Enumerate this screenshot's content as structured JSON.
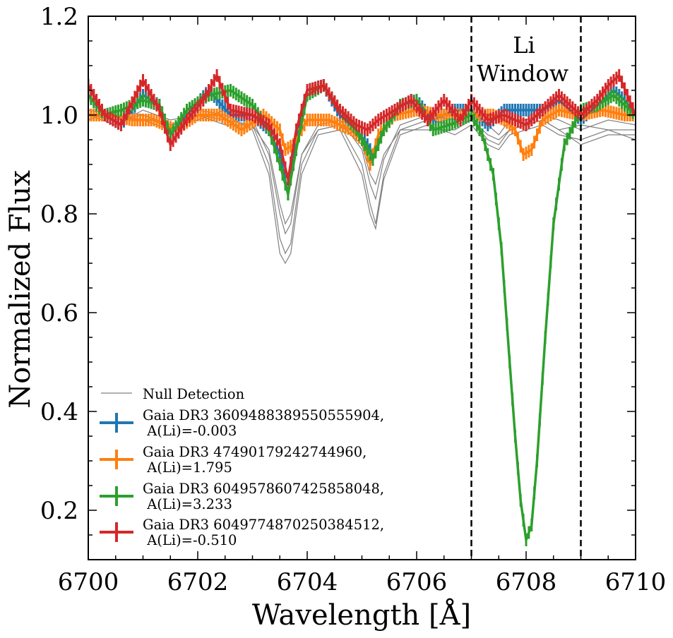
{
  "chart_data": {
    "type": "line",
    "title": "",
    "xlabel": "Wavelength [Å]",
    "ylabel": "Normalized Flux",
    "xlim": [
      6700,
      6710
    ],
    "ylim": [
      0.1,
      1.2
    ],
    "xticks": [
      6700,
      6702,
      6704,
      6706,
      6708,
      6710
    ],
    "xtick_labels": [
      "6700",
      "6702",
      "6704",
      "6706",
      "6708",
      "6710"
    ],
    "yticks": [
      0.2,
      0.4,
      0.6,
      0.8,
      1.0,
      1.2
    ],
    "ytick_labels": [
      "0.2",
      "0.4",
      "0.6",
      "0.8",
      "1.0",
      "1.2"
    ],
    "vlines": [
      6707.0,
      6709.0
    ],
    "annotation": {
      "line1": "Li",
      "line2": "Window",
      "x": 6707.95,
      "y": 1.12
    },
    "null_detection": {
      "name": "Null Detection",
      "color": "#808080",
      "lines": [
        {
          "x": [
            6700,
            6700.5,
            6701,
            6701.5,
            6702,
            6702.5,
            6703,
            6703.3,
            6703.5,
            6703.6,
            6703.7,
            6703.9,
            6704.2,
            6704.6,
            6705.0,
            6705.15,
            6705.25,
            6705.4,
            6705.7,
            6706.2,
            6706.7,
            6707,
            6707.3,
            6707.5,
            6707.7,
            6708,
            6708.3,
            6708.6,
            6709,
            6709.5,
            6710
          ],
          "y": [
            1.0,
            0.99,
            1.0,
            0.98,
            1.0,
            0.99,
            0.98,
            0.9,
            0.75,
            0.72,
            0.74,
            0.9,
            0.97,
            0.98,
            0.9,
            0.82,
            0.78,
            0.88,
            0.97,
            0.99,
            0.98,
            0.99,
            0.96,
            0.95,
            0.97,
            0.98,
            0.99,
            0.97,
            0.98,
            0.97,
            0.97
          ]
        },
        {
          "x": [
            6700,
            6700.5,
            6701,
            6701.5,
            6702,
            6702.5,
            6703,
            6703.3,
            6703.5,
            6703.6,
            6703.7,
            6703.9,
            6704.2,
            6704.6,
            6705.0,
            6705.15,
            6705.25,
            6705.4,
            6705.7,
            6706.2,
            6706.7,
            6707,
            6707.3,
            6707.5,
            6707.7,
            6708,
            6708.3,
            6708.6,
            6709,
            6709.5,
            6710
          ],
          "y": [
            1.01,
            1.0,
            0.99,
            0.97,
            1.01,
            1.0,
            0.97,
            0.88,
            0.72,
            0.7,
            0.72,
            0.88,
            0.96,
            0.97,
            0.88,
            0.8,
            0.77,
            0.87,
            0.96,
            0.98,
            0.96,
            0.98,
            0.94,
            0.93,
            0.96,
            0.97,
            0.98,
            0.96,
            0.95,
            0.97,
            0.95
          ]
        },
        {
          "x": [
            6700,
            6700.5,
            6701,
            6701.5,
            6702,
            6702.5,
            6703,
            6703.3,
            6703.5,
            6703.6,
            6703.7,
            6703.9,
            6704.2,
            6704.6,
            6705.0,
            6705.15,
            6705.25,
            6705.4,
            6705.7,
            6706.2,
            6706.7,
            6707,
            6707.3,
            6707.5,
            6707.7,
            6708,
            6708.3,
            6708.6,
            6709,
            6709.5,
            6710
          ],
          "y": [
            0.99,
            1.01,
            1.0,
            0.98,
            0.99,
            1.01,
            0.99,
            0.92,
            0.8,
            0.76,
            0.78,
            0.92,
            0.98,
            0.99,
            0.93,
            0.86,
            0.83,
            0.91,
            0.98,
            1.0,
            0.99,
            1.0,
            0.98,
            0.96,
            0.99,
            0.99,
            1.0,
            0.99,
            0.97,
            0.99,
            0.98
          ]
        },
        {
          "x": [
            6700,
            6700.5,
            6701,
            6701.5,
            6702,
            6702.5,
            6703,
            6703.3,
            6703.5,
            6703.6,
            6703.7,
            6703.9,
            6704.2,
            6704.6,
            6705.0,
            6705.15,
            6705.25,
            6705.4,
            6705.7,
            6706.2,
            6706.7,
            6707,
            6707.3,
            6707.5,
            6707.7,
            6708,
            6708.3,
            6708.6,
            6709,
            6709.5,
            6710
          ],
          "y": [
            1.0,
            0.98,
            1.01,
            0.99,
            1.0,
            0.98,
            0.98,
            0.93,
            0.82,
            0.78,
            0.8,
            0.92,
            0.97,
            0.98,
            0.94,
            0.88,
            0.86,
            0.92,
            0.97,
            0.97,
            0.97,
            0.99,
            0.95,
            0.94,
            0.97,
            0.98,
            0.99,
            0.97,
            0.94,
            0.96,
            0.96
          ]
        }
      ]
    },
    "series": [
      {
        "name": "Gaia DR3 3609488389550555904,",
        "label_line2": " A(Li)=-0.003",
        "color": "#1f77b4",
        "x": [
          6700,
          6700.3,
          6700.6,
          6701.0,
          6701.3,
          6701.5,
          6701.8,
          6702.2,
          6702.6,
          6703.0,
          6703.3,
          6703.5,
          6703.65,
          6703.8,
          6704.0,
          6704.3,
          6704.6,
          6704.9,
          6705.1,
          6705.2,
          6705.4,
          6705.7,
          6706.0,
          6706.3,
          6706.7,
          6707.0,
          6707.3,
          6707.6,
          6708.0,
          6708.3,
          6708.6,
          6709.0,
          6709.3,
          6709.6,
          6709.8,
          6710
        ],
        "y": [
          1.04,
          1.0,
          0.98,
          1.04,
          1.02,
          0.96,
          1.0,
          1.05,
          1.0,
          1.0,
          0.97,
          0.92,
          0.84,
          0.95,
          1.05,
          1.06,
          1.0,
          0.97,
          0.94,
          0.92,
          0.97,
          1.02,
          1.03,
          0.99,
          1.01,
          1.01,
          0.98,
          1.01,
          1.01,
          1.01,
          1.03,
          0.99,
          1.02,
          1.05,
          1.03,
          1.0
        ]
      },
      {
        "name": "Gaia DR3 47490179242744960,",
        "label_line2": " A(Li)=1.795",
        "color": "#ff7f0e",
        "x": [
          6700,
          6700.4,
          6700.8,
          6701.2,
          6701.6,
          6702.0,
          6702.4,
          6702.8,
          6703.2,
          6703.5,
          6703.6,
          6703.75,
          6704.0,
          6704.4,
          6704.8,
          6705.0,
          6705.15,
          6705.3,
          6705.6,
          6706.0,
          6706.4,
          6706.8,
          6707.1,
          6707.4,
          6707.6,
          6707.8,
          6707.95,
          6708.1,
          6708.3,
          6708.6,
          6709.0,
          6709.4,
          6709.8,
          6710
        ],
        "y": [
          1.0,
          1.0,
          0.99,
          0.99,
          0.97,
          1.0,
          1.0,
          0.97,
          1.0,
          0.97,
          0.93,
          0.94,
          0.99,
          0.99,
          0.97,
          0.95,
          0.9,
          0.96,
          1.0,
          1.01,
          1.0,
          1.0,
          1.0,
          1.0,
          0.99,
          0.97,
          0.92,
          0.93,
          0.99,
          1.01,
          1.0,
          1.01,
          1.0,
          1.0
        ]
      },
      {
        "name": "Gaia DR3 6049578607425858048,",
        "label_line2": " A(Li)=3.233",
        "color": "#2ca02c",
        "x": [
          6700,
          6700.3,
          6700.6,
          6701.0,
          6701.3,
          6701.5,
          6701.8,
          6702.2,
          6702.6,
          6703.0,
          6703.3,
          6703.5,
          6703.65,
          6703.8,
          6704.0,
          6704.3,
          6704.6,
          6704.9,
          6705.1,
          6705.2,
          6705.4,
          6705.7,
          6706.0,
          6706.3,
          6706.6,
          6707.0,
          6707.2,
          6707.4,
          6707.55,
          6707.7,
          6707.8,
          6707.9,
          6708.0,
          6708.1,
          6708.2,
          6708.35,
          6708.5,
          6708.7,
          6709.0,
          6709.3,
          6709.6,
          6709.8,
          6710
        ],
        "y": [
          1.04,
          1.0,
          1.01,
          1.03,
          1.02,
          0.96,
          1.01,
          1.04,
          1.05,
          1.02,
          0.97,
          0.9,
          0.84,
          0.93,
          1.04,
          1.06,
          1.01,
          0.97,
          0.93,
          0.91,
          0.97,
          1.02,
          1.03,
          0.97,
          0.98,
          1.0,
          0.96,
          0.88,
          0.73,
          0.5,
          0.35,
          0.22,
          0.14,
          0.17,
          0.3,
          0.55,
          0.78,
          0.94,
          1.01,
          1.02,
          1.04,
          1.02,
          1.0
        ]
      },
      {
        "name": "Gaia DR3 6049774870250384512,",
        "label_line2": " A(Li)=-0.510",
        "color": "#d62728",
        "x": [
          6700,
          6700.3,
          6700.6,
          6701.0,
          6701.3,
          6701.5,
          6701.8,
          6702.1,
          6702.35,
          6702.6,
          6703.0,
          6703.3,
          6703.5,
          6703.65,
          6703.8,
          6704.0,
          6704.3,
          6704.6,
          6704.9,
          6705.1,
          6705.3,
          6705.6,
          6705.9,
          6706.2,
          6706.5,
          6706.8,
          6707.0,
          6707.3,
          6707.6,
          6708.0,
          6708.3,
          6708.6,
          6709.0,
          6709.3,
          6709.5,
          6709.7,
          6710
        ],
        "y": [
          1.06,
          1.0,
          0.98,
          1.07,
          1.01,
          0.94,
          0.99,
          1.03,
          1.08,
          1.01,
          1.0,
          0.98,
          0.94,
          0.87,
          0.97,
          1.05,
          1.06,
          1.01,
          0.98,
          0.97,
          0.99,
          1.01,
          1.03,
          0.99,
          1.03,
          0.99,
          1.03,
          0.99,
          1.0,
          0.98,
          1.01,
          1.04,
          1.0,
          1.03,
          1.06,
          1.08,
          1.0
        ]
      }
    ]
  }
}
